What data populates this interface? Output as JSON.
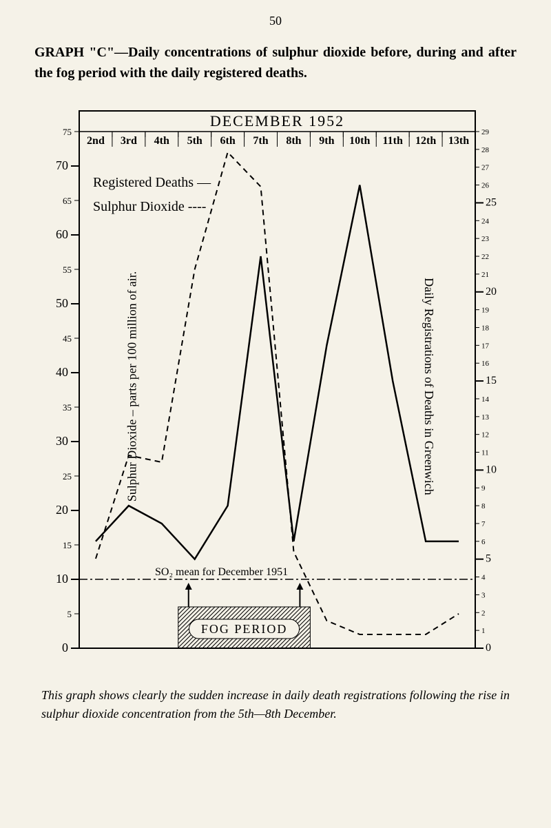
{
  "page_number": "50",
  "title_prefix": "GRAPH \"C\"—Daily concentrations of sulphur dioxide before, during and after the fog period with the daily registered deaths.",
  "chart": {
    "type": "line",
    "chart_title": "DECEMBER 1952",
    "legend": {
      "deaths": "Registered Deaths —",
      "so2": "Sulphur Dioxide ----"
    },
    "x_labels": [
      "2nd",
      "3rd",
      "4th",
      "5th",
      "6th",
      "7th",
      "8th",
      "9th",
      "10th",
      "11th",
      "12th",
      "13th"
    ],
    "left_axis": {
      "label": "Sulphur Dioxide – parts per 100 million of air.",
      "ticks": [
        0,
        5,
        10,
        15,
        20,
        25,
        30,
        35,
        40,
        45,
        50,
        55,
        60,
        65,
        70,
        75
      ],
      "major_ticks": [
        10,
        20,
        30,
        40,
        50,
        60,
        70
      ],
      "ylim": [
        0,
        75
      ]
    },
    "right_axis": {
      "label": "Daily Registrations of Deaths in Greenwich",
      "ticks": [
        0,
        1,
        2,
        3,
        4,
        5,
        6,
        7,
        8,
        9,
        10,
        11,
        12,
        13,
        14,
        15,
        16,
        17,
        18,
        19,
        20,
        21,
        22,
        23,
        24,
        25,
        26,
        27,
        28,
        29
      ],
      "major_ticks": [
        5,
        10,
        15,
        20,
        25
      ],
      "ylim": [
        0,
        29
      ]
    },
    "series": {
      "registered_deaths": {
        "style": "solid",
        "color": "#000000",
        "width": 2,
        "data": [
          6,
          8,
          7,
          5,
          8,
          22,
          6,
          17,
          26,
          15,
          6,
          6
        ]
      },
      "sulphur_dioxide": {
        "style": "dashed",
        "color": "#000000",
        "width": 2,
        "data": [
          13,
          28,
          27,
          55,
          72,
          67,
          14,
          4,
          2,
          2,
          2,
          5
        ]
      }
    },
    "so2_mean_line": {
      "label": "SO₂ mean for December 1951",
      "value": 10
    },
    "fog_period": {
      "label": "Fog Period",
      "start_idx": 3,
      "end_idx": 7
    },
    "background_color": "#f5f2e8",
    "border_color": "#000000",
    "text_color": "#000000"
  },
  "caption": "This graph shows clearly the sudden increase in daily death registrations following the rise in sulphur dioxide concentration from the 5th—8th December."
}
